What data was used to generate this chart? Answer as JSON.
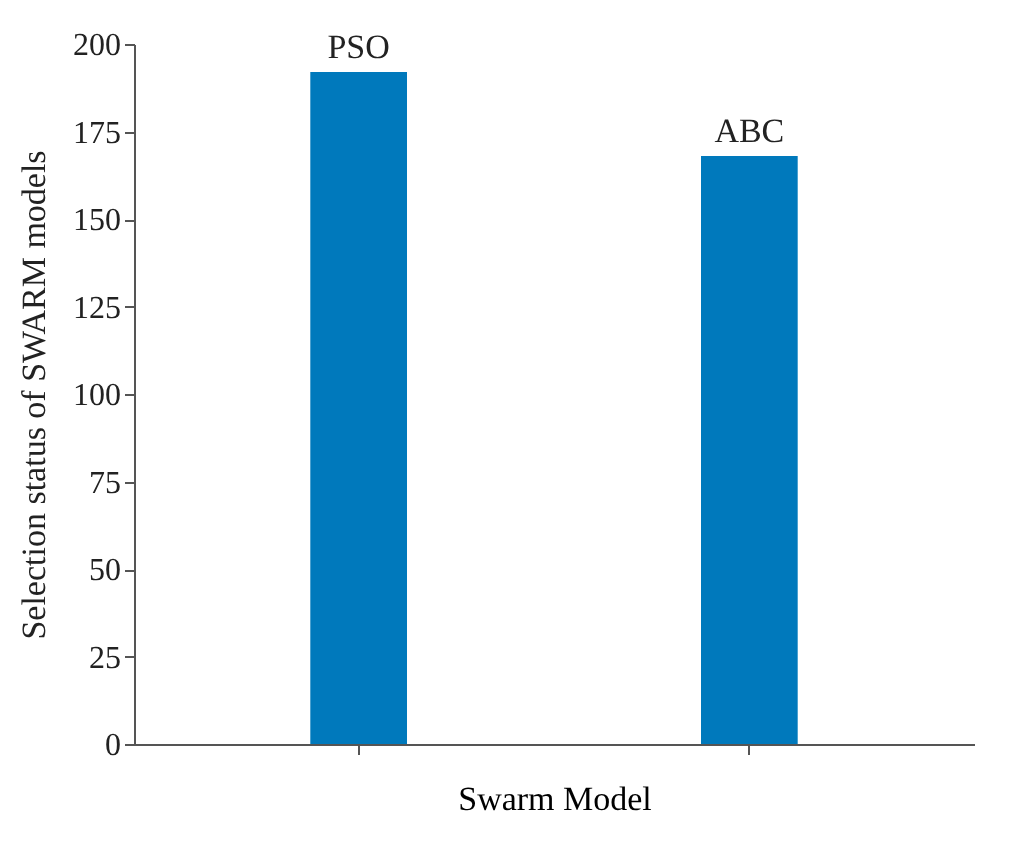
{
  "chart_data": {
    "type": "bar",
    "xlabel": "Swarm Model",
    "ylabel": "Selection status of SWARM models",
    "categories": [
      "PSO",
      "ABC"
    ],
    "values": [
      192,
      168
    ],
    "color": "#0079bc",
    "ylim": [
      0,
      200
    ],
    "yticks": [
      0,
      25,
      50,
      75,
      100,
      125,
      150,
      175,
      200
    ],
    "grid": false,
    "tick_labels": "y"
  }
}
